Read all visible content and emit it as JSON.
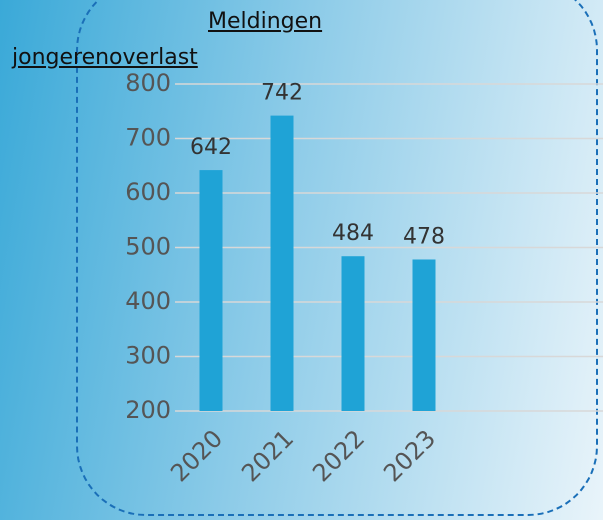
{
  "chart_data": {
    "type": "bar",
    "title": "Meldingen jongerenoverlast",
    "categories": [
      "2020",
      "2021",
      "2022",
      "2023"
    ],
    "values": [
      642,
      742,
      484,
      478
    ],
    "color": "#1fa3d6",
    "ylim": [
      200,
      800
    ],
    "yticks": [
      200,
      300,
      400,
      500,
      600,
      700,
      800
    ],
    "grid": true
  }
}
